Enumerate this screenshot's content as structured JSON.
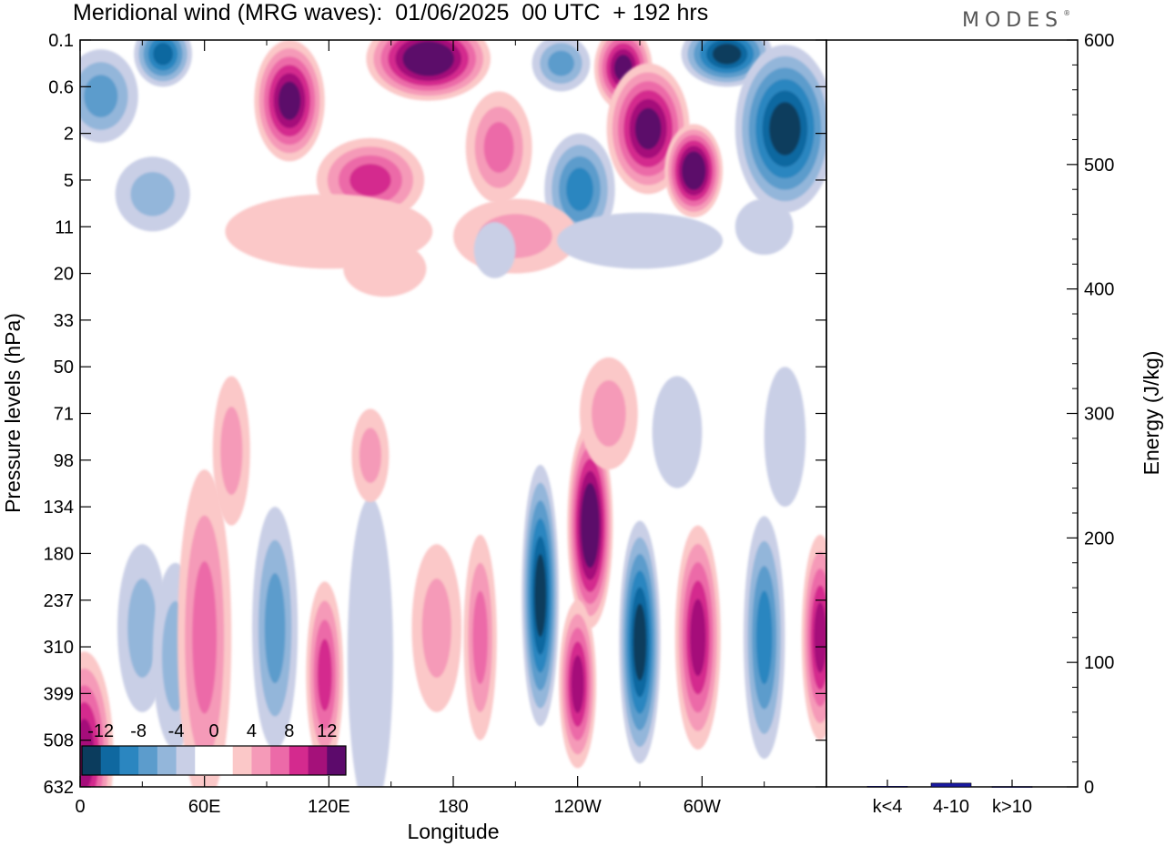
{
  "chart_data": [
    {
      "type": "heatmap",
      "title": "Meridional wind (MRG waves):  01/06/2025  00 UTC  + 192 hrs",
      "xlabel": "Longitude",
      "ylabel": "Pressure levels (hPa)",
      "x_ticks": [
        "0",
        "60E",
        "120E",
        "180",
        "120W",
        "60W"
      ],
      "x_tick_values": [
        0,
        60,
        120,
        180,
        240,
        300
      ],
      "xlim": [
        0,
        360
      ],
      "y_ticks": [
        "0.1",
        "0.6",
        "2",
        "5",
        "11",
        "20",
        "33",
        "50",
        "71",
        "98",
        "134",
        "180",
        "237",
        "310",
        "399",
        "508",
        "632"
      ],
      "colorbar": {
        "labels": [
          "-12",
          "-8",
          "-4",
          "0",
          "4",
          "8",
          "12"
        ],
        "colors": [
          "#0b3c5d",
          "#0f68a0",
          "#2b86c0",
          "#5c9ccc",
          "#93b6da",
          "#c9cfe6",
          "#ffffff",
          "#ffffff",
          "#fbc8c8",
          "#f59ab8",
          "#ec6aa8",
          "#d42a8e",
          "#a5117a",
          "#5c0a6b"
        ]
      },
      "features": [
        {
          "lon": 2,
          "level": 15.3,
          "rx": 14,
          "ry": 2.2,
          "sign": 1,
          "amp": 5
        },
        {
          "lon": 30,
          "level": 12.6,
          "rx": 12,
          "ry": 1.8,
          "sign": -1,
          "amp": 2
        },
        {
          "lon": 46,
          "level": 13.2,
          "rx": 11,
          "ry": 2.0,
          "sign": -1,
          "amp": 2
        },
        {
          "lon": 60,
          "level": 12.8,
          "rx": 13,
          "ry": 3.6,
          "sign": 1,
          "amp": 3
        },
        {
          "lon": 94,
          "level": 12.6,
          "rx": 11,
          "ry": 2.6,
          "sign": -1,
          "amp": 3
        },
        {
          "lon": 118,
          "level": 13.6,
          "rx": 9,
          "ry": 2.0,
          "sign": 1,
          "amp": 4
        },
        {
          "lon": 140,
          "level": 13.2,
          "rx": 11,
          "ry": 3.4,
          "sign": -1,
          "amp": 1
        },
        {
          "lon": 172,
          "level": 12.6,
          "rx": 12,
          "ry": 1.8,
          "sign": 1,
          "amp": 2
        },
        {
          "lon": 193,
          "level": 12.8,
          "rx": 8,
          "ry": 2.2,
          "sign": 1,
          "amp": 3
        },
        {
          "lon": 222,
          "level": 11.9,
          "rx": 9,
          "ry": 2.8,
          "sign": -1,
          "amp": 6
        },
        {
          "lon": 246,
          "level": 10.4,
          "rx": 11,
          "ry": 2.2,
          "sign": 1,
          "amp": 7
        },
        {
          "lon": 240,
          "level": 13.8,
          "rx": 9,
          "ry": 1.8,
          "sign": 1,
          "amp": 5
        },
        {
          "lon": 270,
          "level": 12.9,
          "rx": 10,
          "ry": 2.6,
          "sign": -1,
          "amp": 6
        },
        {
          "lon": 298,
          "level": 12.8,
          "rx": 11,
          "ry": 2.4,
          "sign": 1,
          "amp": 5
        },
        {
          "lon": 330,
          "level": 12.8,
          "rx": 10,
          "ry": 2.6,
          "sign": -1,
          "amp": 4
        },
        {
          "lon": 357,
          "level": 12.8,
          "rx": 9,
          "ry": 2.2,
          "sign": 1,
          "amp": 5
        },
        {
          "lon": 340,
          "level": 8.5,
          "rx": 10,
          "ry": 1.5,
          "sign": -1,
          "amp": 1
        },
        {
          "lon": 73,
          "level": 8.8,
          "rx": 9,
          "ry": 1.6,
          "sign": 1,
          "amp": 2
        },
        {
          "lon": 255,
          "level": 8.0,
          "rx": 14,
          "ry": 1.2,
          "sign": 1,
          "amp": 2
        },
        {
          "lon": 288,
          "level": 8.4,
          "rx": 12,
          "ry": 1.2,
          "sign": -1,
          "amp": 1
        },
        {
          "lon": 140,
          "level": 8.9,
          "rx": 9,
          "ry": 1.0,
          "sign": 1,
          "amp": 2
        },
        {
          "lon": 40,
          "level": 0.3,
          "rx": 14,
          "ry": 0.7,
          "sign": -1,
          "amp": 5
        },
        {
          "lon": 10,
          "level": 1.2,
          "rx": 18,
          "ry": 1.0,
          "sign": -1,
          "amp": 3
        },
        {
          "lon": 101,
          "level": 1.3,
          "rx": 17,
          "ry": 1.3,
          "sign": 1,
          "amp": 6
        },
        {
          "lon": 168,
          "level": 0.4,
          "rx": 30,
          "ry": 0.9,
          "sign": 1,
          "amp": 7
        },
        {
          "lon": 140,
          "level": 3.0,
          "rx": 26,
          "ry": 0.9,
          "sign": 1,
          "amp": 4
        },
        {
          "lon": 202,
          "level": 2.3,
          "rx": 16,
          "ry": 1.2,
          "sign": 1,
          "amp": 3
        },
        {
          "lon": 232,
          "level": 0.5,
          "rx": 14,
          "ry": 0.6,
          "sign": -1,
          "amp": 3
        },
        {
          "lon": 262,
          "level": 0.6,
          "rx": 14,
          "ry": 0.9,
          "sign": 1,
          "amp": 6
        },
        {
          "lon": 274,
          "level": 1.9,
          "rx": 20,
          "ry": 1.4,
          "sign": 1,
          "amp": 6
        },
        {
          "lon": 296,
          "level": 2.8,
          "rx": 14,
          "ry": 1.0,
          "sign": 1,
          "amp": 7
        },
        {
          "lon": 241,
          "level": 3.2,
          "rx": 17,
          "ry": 1.2,
          "sign": -1,
          "amp": 4
        },
        {
          "lon": 312,
          "level": 0.3,
          "rx": 22,
          "ry": 0.7,
          "sign": -1,
          "amp": 6
        },
        {
          "lon": 340,
          "level": 1.9,
          "rx": 24,
          "ry": 1.8,
          "sign": -1,
          "amp": 6
        },
        {
          "lon": 210,
          "level": 4.2,
          "rx": 30,
          "ry": 0.8,
          "sign": 1,
          "amp": 2
        },
        {
          "lon": 120,
          "level": 4.1,
          "rx": 50,
          "ry": 0.8,
          "sign": 1,
          "amp": 1
        },
        {
          "lon": 35,
          "level": 3.3,
          "rx": 18,
          "ry": 0.8,
          "sign": -1,
          "amp": 2
        },
        {
          "lon": 147,
          "level": 4.9,
          "rx": 20,
          "ry": 0.6,
          "sign": 1,
          "amp": 1
        },
        {
          "lon": 200,
          "level": 4.5,
          "rx": 10,
          "ry": 0.6,
          "sign": -1,
          "amp": 1
        },
        {
          "lon": 330,
          "level": 4.0,
          "rx": 14,
          "ry": 0.6,
          "sign": -1,
          "amp": 1
        },
        {
          "lon": 270,
          "level": 4.3,
          "rx": 40,
          "ry": 0.6,
          "sign": -1,
          "amp": 1
        }
      ]
    },
    {
      "type": "bar",
      "categories": [
        "k<4",
        "4-10",
        "k>10"
      ],
      "values": [
        0.5,
        3,
        0.3
      ],
      "ylabel": "Energy (J/kg)",
      "ylim": [
        0,
        600
      ],
      "y_ticks": [
        0,
        100,
        200,
        300,
        400,
        500,
        600
      ],
      "bar_color": "#1a1aa0"
    }
  ]
}
